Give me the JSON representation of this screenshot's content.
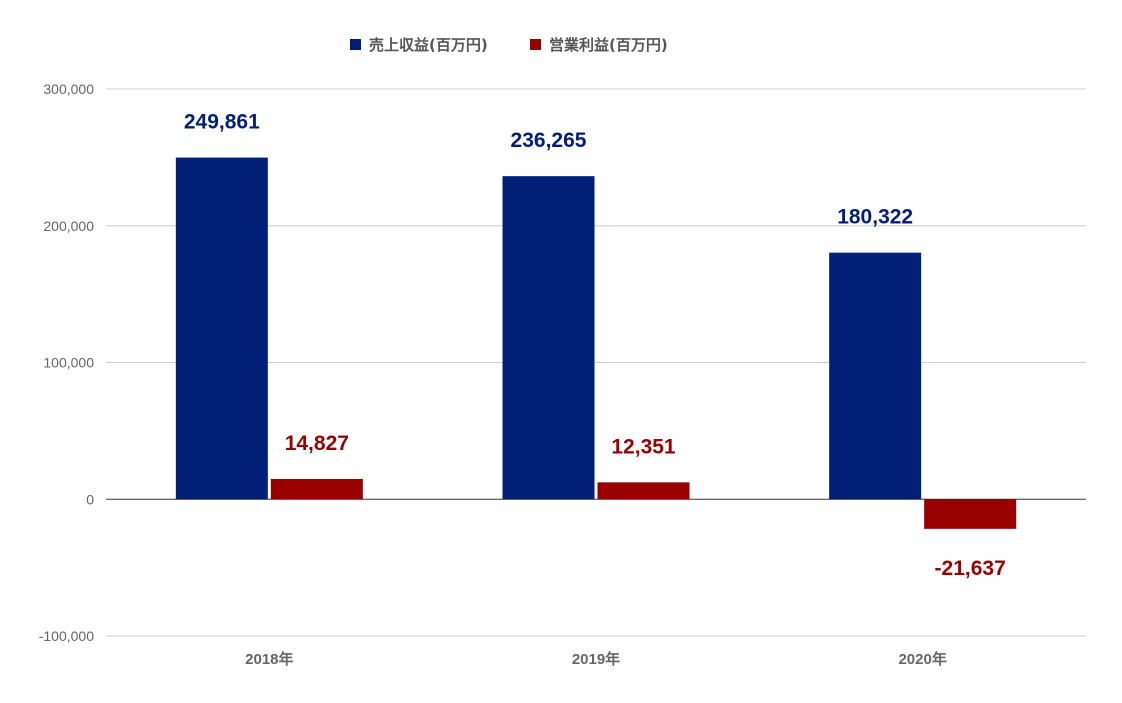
{
  "chart_data": {
    "type": "bar",
    "categories": [
      "2018年",
      "2019年",
      "2020年"
    ],
    "series": [
      {
        "name": "売上収益(百万円)",
        "color": "#021f78",
        "values": [
          249861,
          236265,
          180322
        ],
        "labels": [
          "249,861",
          "236,265",
          "180,322"
        ]
      },
      {
        "name": "営業利益(百万円)",
        "color": "#9a0000",
        "values": [
          14827,
          12351,
          -21637
        ],
        "labels": [
          "14,827",
          "12,351",
          "-21,637"
        ]
      }
    ],
    "ylim": [
      -100000,
      300000
    ],
    "yticks": [
      {
        "value": 300000,
        "label": "300,000"
      },
      {
        "value": 200000,
        "label": "200,000"
      },
      {
        "value": 100000,
        "label": "100,000"
      },
      {
        "value": 0,
        "label": "0"
      },
      {
        "value": -100000,
        "label": "-100,000"
      }
    ],
    "grid": true,
    "legend_position": "top-center"
  }
}
